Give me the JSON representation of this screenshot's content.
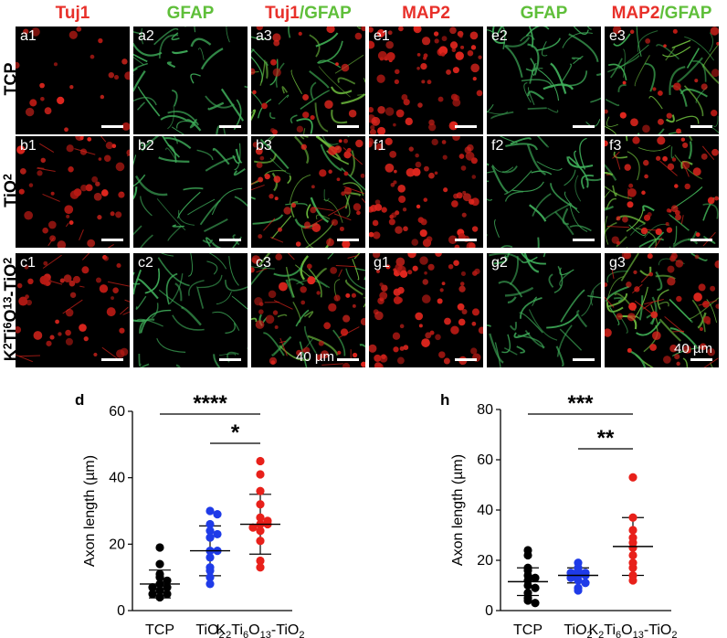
{
  "headers": [
    {
      "text": "Tuj1",
      "color": "#e8302a"
    },
    {
      "text": "GFAP",
      "color": "#5fbf3a"
    },
    {
      "text": "Tuj1/GFAP",
      "color": "#e8302a"
    },
    {
      "text": "MAP2",
      "color": "#e8302a"
    },
    {
      "text": "GFAP",
      "color": "#5fbf3a"
    },
    {
      "text": "MAP2/GFAP",
      "color": "#e8302a"
    }
  ],
  "rows": [
    "TCP",
    "TiO2",
    "K2Ti6O13-TiO2"
  ],
  "panels": {
    "r0": [
      "a1",
      "a2",
      "a3",
      "e1",
      "e2",
      "e3"
    ],
    "r1": [
      "b1",
      "b2",
      "b3",
      "f1",
      "f2",
      "f3"
    ],
    "r2": [
      "c1",
      "c2",
      "c3",
      "g1",
      "g2",
      "g3"
    ]
  },
  "scale_label": "40 µm",
  "chart_data": [
    {
      "panel": "d",
      "type": "scatter",
      "ylabel": "Axon length (µm)",
      "ylim": [
        0,
        60
      ],
      "yticks": [
        0,
        20,
        40,
        60
      ],
      "categories": [
        "TCP",
        "TiO2",
        "K2Ti6O13-TiO2"
      ],
      "series": [
        {
          "color": "#000000",
          "values": [
            19,
            14,
            11,
            10,
            9,
            8,
            7,
            7,
            6,
            5,
            5,
            4
          ],
          "mean": 8.0,
          "sd": 4.2
        },
        {
          "color": "#1f3be8",
          "values": [
            30,
            29,
            26,
            24,
            23,
            22,
            18,
            18,
            16,
            13,
            12,
            10,
            8
          ],
          "mean": 18.0,
          "sd": 7.5
        },
        {
          "color": "#e8201a",
          "values": [
            45,
            41,
            36,
            32,
            28,
            27,
            26,
            26,
            25,
            24,
            21,
            15,
            13
          ],
          "mean": 26.0,
          "sd": 9.0
        }
      ],
      "significance": [
        {
          "from": 0,
          "to": 2,
          "label": "****"
        },
        {
          "from": 1,
          "to": 2,
          "label": "*"
        }
      ]
    },
    {
      "panel": "h",
      "type": "scatter",
      "ylabel": "Axon length (µm)",
      "ylim": [
        0,
        80
      ],
      "yticks": [
        0,
        20,
        40,
        60,
        80
      ],
      "categories": [
        "TCP",
        "TiO2",
        "K2Ti6O13-TiO2"
      ],
      "series": [
        {
          "color": "#000000",
          "values": [
            24,
            22,
            17,
            16,
            14,
            13,
            12,
            10,
            9,
            7,
            5,
            4,
            3
          ],
          "mean": 11.5,
          "sd": 5.5
        },
        {
          "color": "#1f3be8",
          "values": [
            19,
            17,
            16,
            15,
            15,
            14,
            14,
            13,
            12,
            11,
            9,
            8
          ],
          "mean": 14.0,
          "sd": 3.0
        },
        {
          "color": "#e8201a",
          "values": [
            53,
            37,
            32,
            29,
            27,
            25,
            22,
            19,
            17,
            14,
            12
          ],
          "mean": 25.5,
          "sd": 11.5
        }
      ],
      "significance": [
        {
          "from": 0,
          "to": 2,
          "label": "***"
        },
        {
          "from": 1,
          "to": 2,
          "label": "**"
        }
      ]
    }
  ]
}
